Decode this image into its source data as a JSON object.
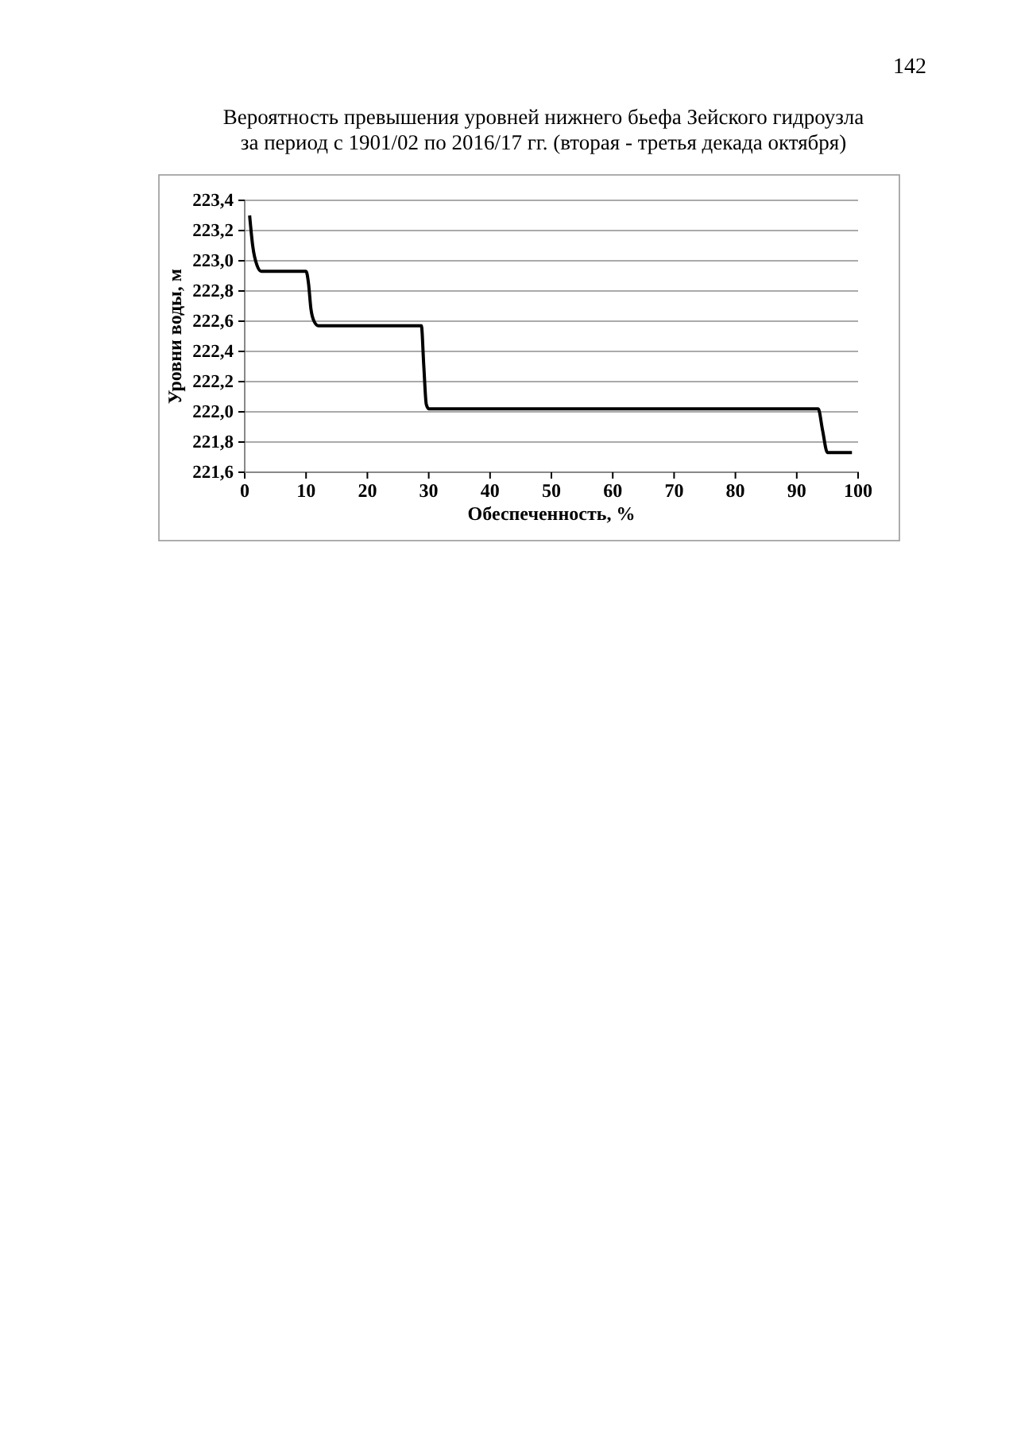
{
  "chart_data": {
    "type": "line",
    "title": "Вероятность превышения уровней нижнего бьефа Зейского гидроузла\nза период с 1901/02 по 2016/17 гг. (вторая - третья декада октября)",
    "xlabel": "Обеспеченность, %",
    "ylabel": "Уровни воды, м",
    "annotations": [
      "142"
    ],
    "series": [
      {
        "color": "#000000",
        "x": [
          0.8,
          1.3,
          2,
          2.7,
          5,
          10,
          10.4,
          10.8,
          11.3,
          12,
          20,
          28.8,
          29.2,
          29.6,
          30,
          50,
          70,
          93.5,
          94.2,
          95,
          97,
          99
        ],
        "values": [
          223.3,
          223.1,
          222.97,
          222.93,
          222.93,
          222.93,
          222.85,
          222.68,
          222.6,
          222.57,
          222.57,
          222.57,
          222.3,
          222.05,
          222.02,
          222.02,
          222.02,
          222.02,
          221.88,
          221.73,
          221.73,
          221.73
        ]
      }
    ],
    "xlim": [
      0,
      100
    ],
    "xticks": [
      0,
      10,
      20,
      30,
      40,
      50,
      60,
      70,
      80,
      90,
      100
    ],
    "ylim": [
      221.6,
      223.4
    ],
    "yticks": [
      {
        "value": 221.6,
        "label": "221,6"
      },
      {
        "value": 221.8,
        "label": "221,8"
      },
      {
        "value": 222.0,
        "label": "222,0"
      },
      {
        "value": 222.2,
        "label": "222,2"
      },
      {
        "value": 222.4,
        "label": "222,4"
      },
      {
        "value": 222.6,
        "label": "222,6"
      },
      {
        "value": 222.8,
        "label": "222,8"
      },
      {
        "value": 223.0,
        "label": "223,0"
      },
      {
        "value": 223.2,
        "label": "223,2"
      },
      {
        "value": 223.4,
        "label": "223,4"
      }
    ],
    "grid": "y",
    "marker": "none",
    "line_style": "solid"
  }
}
